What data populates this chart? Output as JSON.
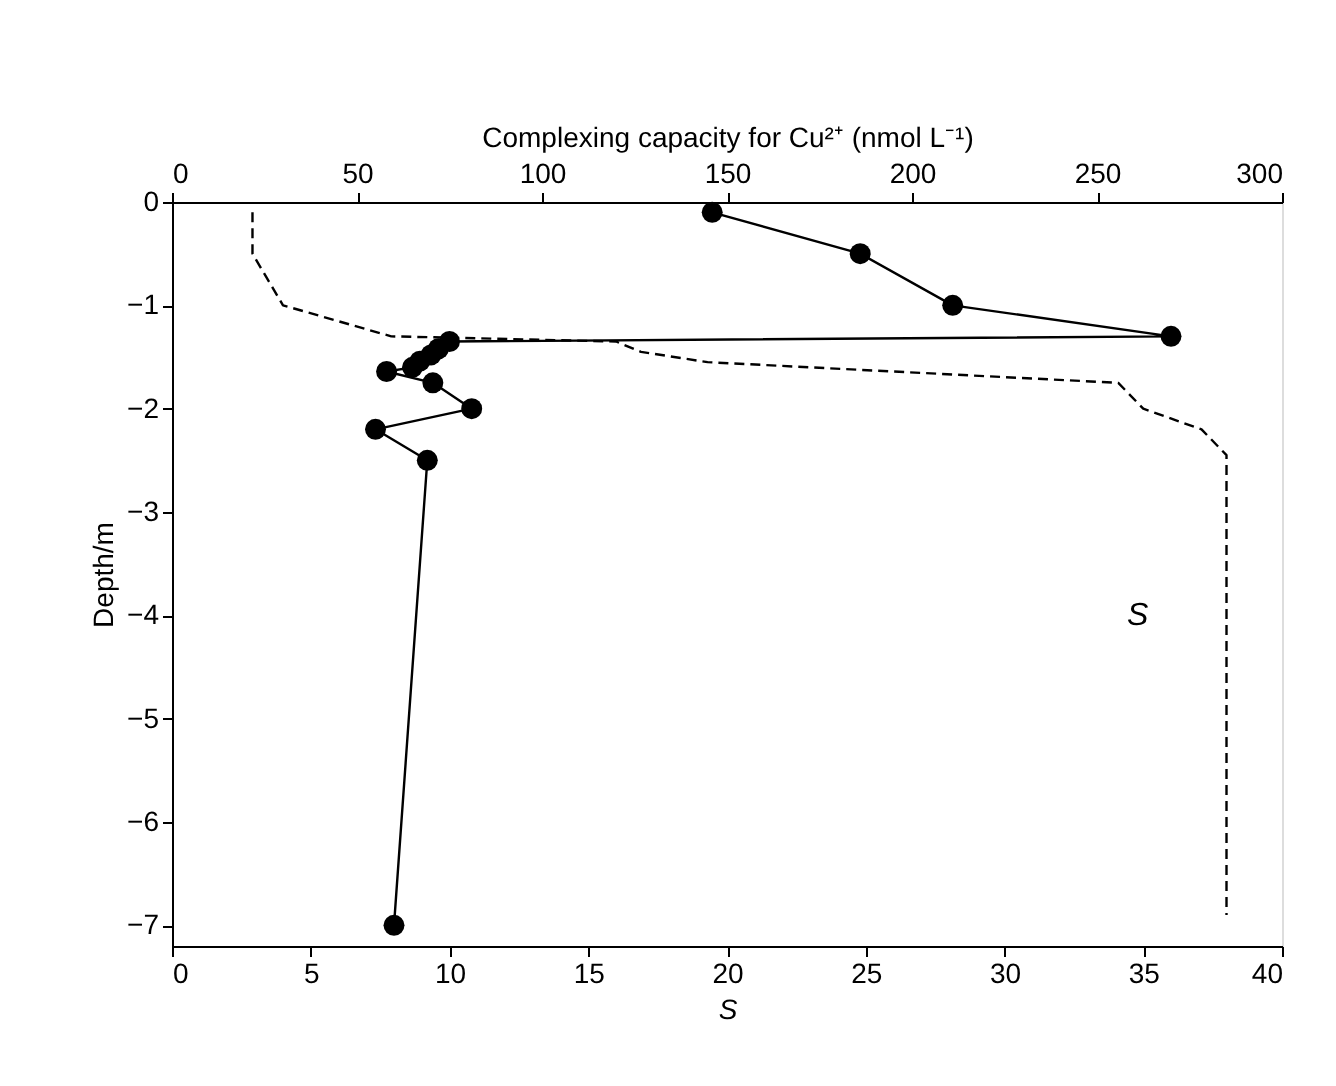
{
  "chart_data": {
    "type": "line",
    "xlabel": "S",
    "ylabel": "Depth/m",
    "x2label": "Complexing capacity for Cu²⁺ (nmol L⁻¹)",
    "xlim": [
      0,
      40
    ],
    "xticks": [
      0,
      5,
      10,
      15,
      20,
      25,
      30,
      35,
      40
    ],
    "x2lim": [
      0,
      300
    ],
    "x2ticks": [
      0,
      50,
      100,
      150,
      200,
      250,
      300
    ],
    "ylim": [
      -7.2,
      0
    ],
    "yticks": [
      0,
      -1,
      -2,
      -3,
      -4,
      -5,
      -6,
      -7
    ],
    "grid": false,
    "series": [
      {
        "axis": "x2",
        "color": "#000000",
        "marker": "circle",
        "line_style": "solid",
        "x": [
          146,
          186,
          211,
          270,
          75,
          72,
          70,
          67,
          65,
          58,
          70.5,
          81,
          55,
          69,
          60
        ],
        "values": [
          -0.1,
          -0.5,
          -1.0,
          -1.3,
          -1.35,
          -1.42,
          -1.48,
          -1.54,
          -1.6,
          -1.64,
          -1.75,
          -2.0,
          -2.2,
          -2.5,
          -7.0
        ]
      },
      {
        "color": "#000000",
        "marker": "none",
        "line_style": "dashed",
        "x": [
          2.9,
          2.9,
          4.0,
          7.9,
          16.0,
          16.9,
          19.3,
          34.1,
          35.0,
          37.1,
          38.0,
          38.0
        ],
        "values": [
          -0.1,
          -0.5,
          -1.0,
          -1.3,
          -1.35,
          -1.45,
          -1.55,
          -1.75,
          -2.0,
          -2.2,
          -2.45,
          -6.9
        ]
      }
    ],
    "annotations": [
      "S"
    ]
  }
}
